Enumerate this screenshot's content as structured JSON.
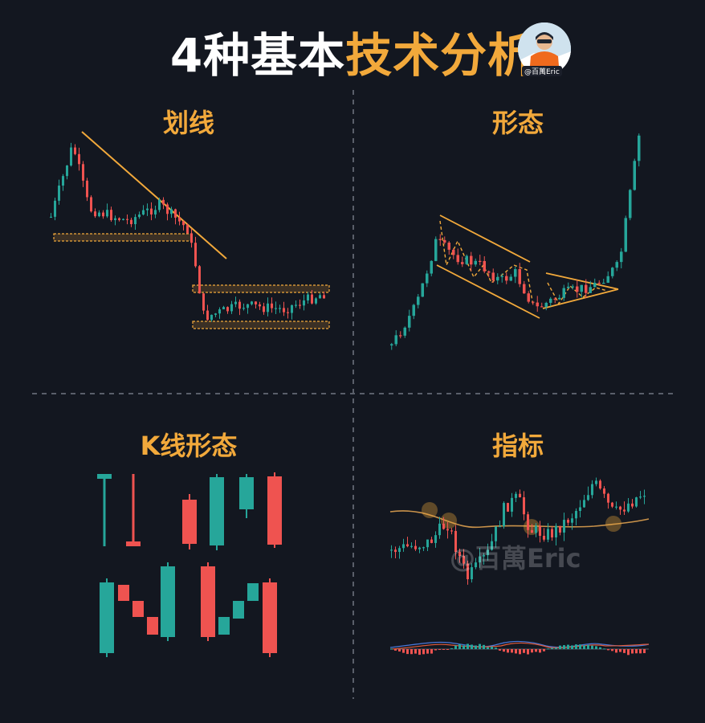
{
  "title": {
    "part1": "4种基本",
    "part2": "技术分析"
  },
  "avatar": {
    "handle": "@百萬Eric"
  },
  "quadrants": {
    "top_left": "划线",
    "top_right": "形态",
    "bottom_left": "K线形态",
    "bottom_right": "指标"
  },
  "watermark": "@百萬Eric",
  "colors": {
    "background": "#131720",
    "accent": "#f2a93b",
    "bull": "#26a69a",
    "bear": "#ef5350",
    "divider": "#5a5f6a"
  }
}
